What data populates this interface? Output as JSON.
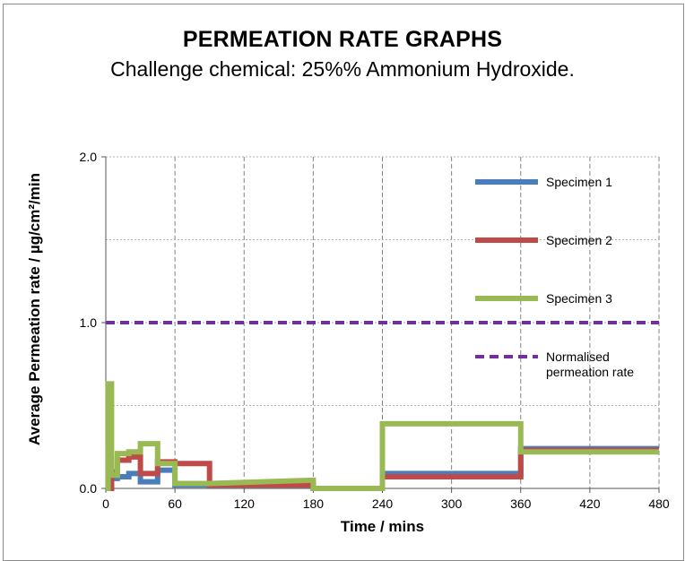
{
  "title": "PERMEATION RATE GRAPHS",
  "subtitle": "Challenge chemical: 25%% Ammonium Hydroxide.",
  "chart_data": {
    "type": "line",
    "xlabel": "Time / mins",
    "ylabel": "Average Permeation rate / µg/cm²/min",
    "xlim": [
      0,
      480
    ],
    "ylim": [
      0,
      2
    ],
    "x_ticks": [
      "0",
      "60",
      "120",
      "180",
      "240",
      "300",
      "360",
      "420",
      "480"
    ],
    "x_tick_values": [
      0,
      60,
      120,
      180,
      240,
      300,
      360,
      420,
      480
    ],
    "y_ticks": [
      "0.0",
      "1.0",
      "2.0"
    ],
    "y_tick_values": [
      0,
      1,
      2
    ],
    "grid": true,
    "legend_position": "right",
    "series": [
      {
        "name": "Specimen 1",
        "color": "#4a7ebb",
        "style": "solid",
        "x": [
          0,
          5,
          5,
          10,
          10,
          20,
          20,
          30,
          30,
          45,
          45,
          60,
          60,
          90,
          90,
          180,
          180,
          240,
          240,
          360,
          360,
          480
        ],
        "y": [
          0,
          0,
          0.06,
          0.06,
          0.07,
          0.07,
          0.09,
          0.09,
          0.04,
          0.04,
          0.11,
          0.11,
          0.02,
          0.02,
          0.02,
          0.02,
          0,
          0,
          0.09,
          0.09,
          0.24,
          0.24
        ]
      },
      {
        "name": "Specimen 2",
        "color": "#be4b48",
        "style": "solid",
        "x": [
          0,
          5,
          5,
          10,
          10,
          20,
          20,
          30,
          30,
          45,
          45,
          60,
          60,
          90,
          90,
          180,
          180,
          240,
          240,
          360,
          360,
          480
        ],
        "y": [
          0,
          0,
          0.1,
          0.1,
          0.17,
          0.17,
          0.19,
          0.19,
          0.09,
          0.09,
          0.16,
          0.16,
          0.15,
          0.15,
          0.02,
          0.02,
          0,
          0,
          0.07,
          0.07,
          0.23,
          0.23
        ]
      },
      {
        "name": "Specimen 3",
        "color": "#98b954",
        "style": "solid",
        "x": [
          0,
          2,
          2,
          5,
          5,
          10,
          10,
          20,
          20,
          30,
          30,
          45,
          45,
          60,
          60,
          90,
          180,
          180,
          240,
          240,
          360,
          360,
          480
        ],
        "y": [
          0,
          0,
          0.63,
          0.63,
          0.08,
          0.08,
          0.21,
          0.21,
          0.22,
          0.22,
          0.27,
          0.27,
          0.15,
          0.15,
          0.03,
          0.03,
          0.05,
          0,
          0,
          0.39,
          0.39,
          0.22,
          0.22
        ]
      },
      {
        "name": "Normalised permeation rate",
        "label_lines": [
          "Normalised",
          "permeation rate"
        ],
        "color": "#7030a0",
        "style": "dashed",
        "x": [
          0,
          480
        ],
        "y": [
          1.0,
          1.0
        ]
      }
    ]
  }
}
